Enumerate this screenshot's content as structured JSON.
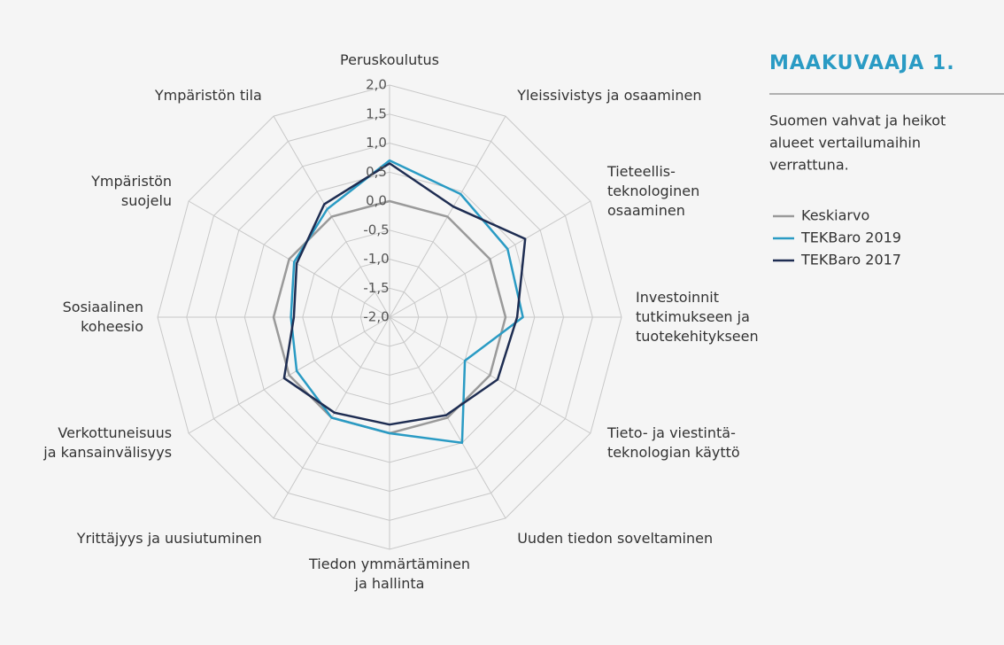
{
  "chart_data": {
    "type": "radar",
    "title": "MAAKUVAAJA 1.",
    "description": [
      "Suomen vahvat ja heikot",
      "alueet vertailumaihin",
      "verrattuna."
    ],
    "categories": [
      [
        "Peruskoulutus"
      ],
      [
        "Yleissivistys ja osaaminen"
      ],
      [
        "Tieteellis-",
        "teknologinen",
        "osaaminen"
      ],
      [
        "Investoinnit",
        "tutkimukseen ja",
        "tuotekehitykseen"
      ],
      [
        "Tieto- ja viestintä-",
        "teknologian käyttö"
      ],
      [
        "Uuden tiedon soveltaminen"
      ],
      [
        "Tiedon ymmärtäminen",
        "ja hallinta"
      ],
      [
        "Yrittäjyys ja uusiutuminen"
      ],
      [
        "Verkottuneisuus",
        "ja kansainvälisyys"
      ],
      [
        "Sosiaalinen",
        "koheesio"
      ],
      [
        "Ympäristön",
        "suojelu"
      ],
      [
        "Ympäristön tila"
      ]
    ],
    "ylim": [
      -2,
      2
    ],
    "yticks": [
      {
        "value": 2,
        "label": "2,0"
      },
      {
        "value": 1.5,
        "label": "1,5"
      },
      {
        "value": 1,
        "label": "1,0"
      },
      {
        "value": 0.5,
        "label": "0,5"
      },
      {
        "value": 0,
        "label": "0,0"
      },
      {
        "value": -0.5,
        "label": "-0,5"
      },
      {
        "value": -1,
        "label": "-1,0"
      },
      {
        "value": -1.5,
        "label": "-1,5"
      },
      {
        "value": -2,
        "label": "-2,0"
      }
    ],
    "grid": true,
    "series": [
      {
        "name": "Keskiarvo",
        "color": "#9a9a9a",
        "values": [
          0,
          0,
          0,
          0,
          0,
          0,
          0,
          0,
          0,
          0,
          0,
          0
        ]
      },
      {
        "name": "TEKBaro 2019",
        "color": "#2a9bc4",
        "values": [
          0.7,
          0.45,
          0.35,
          0.3,
          -0.5,
          0.5,
          0,
          0,
          -0.15,
          -0.3,
          -0.1,
          0.15
        ]
      },
      {
        "name": "TEKBaro 2017",
        "color": "#1e2d52",
        "values": [
          0.65,
          0.2,
          0.7,
          0.2,
          0.15,
          -0.05,
          -0.15,
          -0.1,
          0.1,
          -0.35,
          -0.15,
          0.25
        ]
      }
    ]
  }
}
